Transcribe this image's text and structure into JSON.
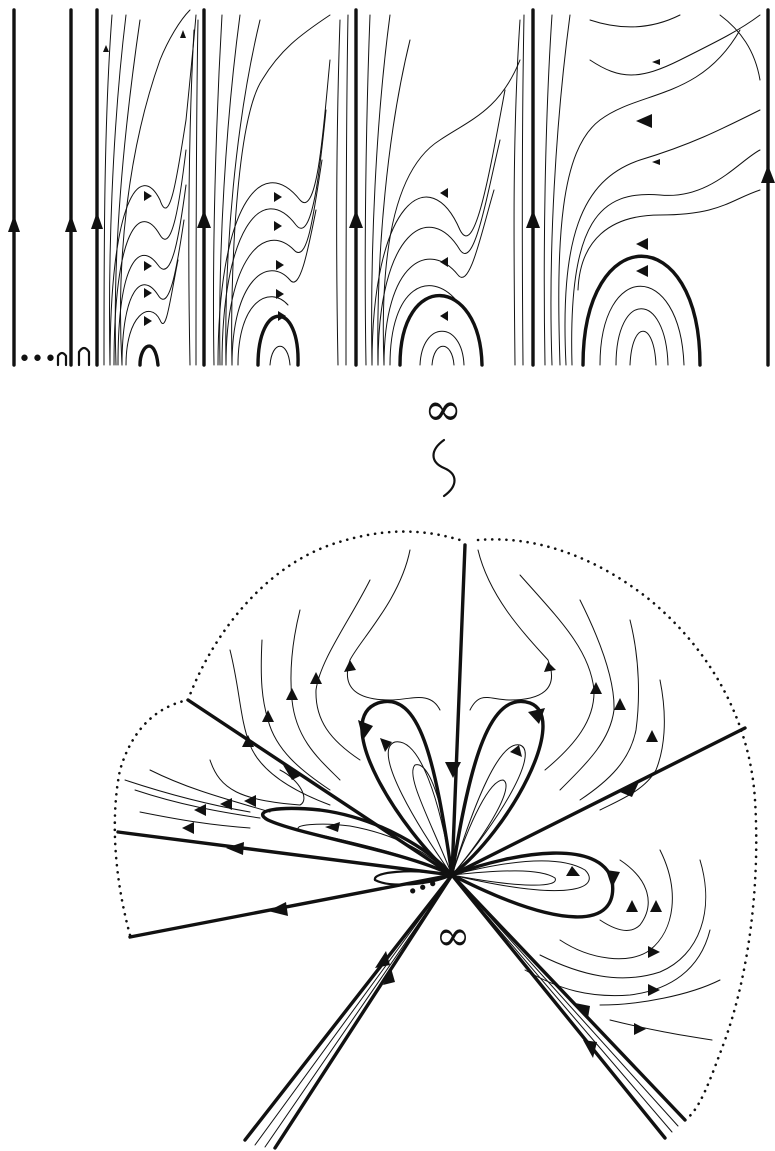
{
  "top_panel": {
    "dots": "•••",
    "strip_count": 4
  },
  "infinity_symbol": "∞",
  "equivalence_symbol": "≀",
  "bottom_panel": {
    "infinity_symbol": "∞"
  }
}
